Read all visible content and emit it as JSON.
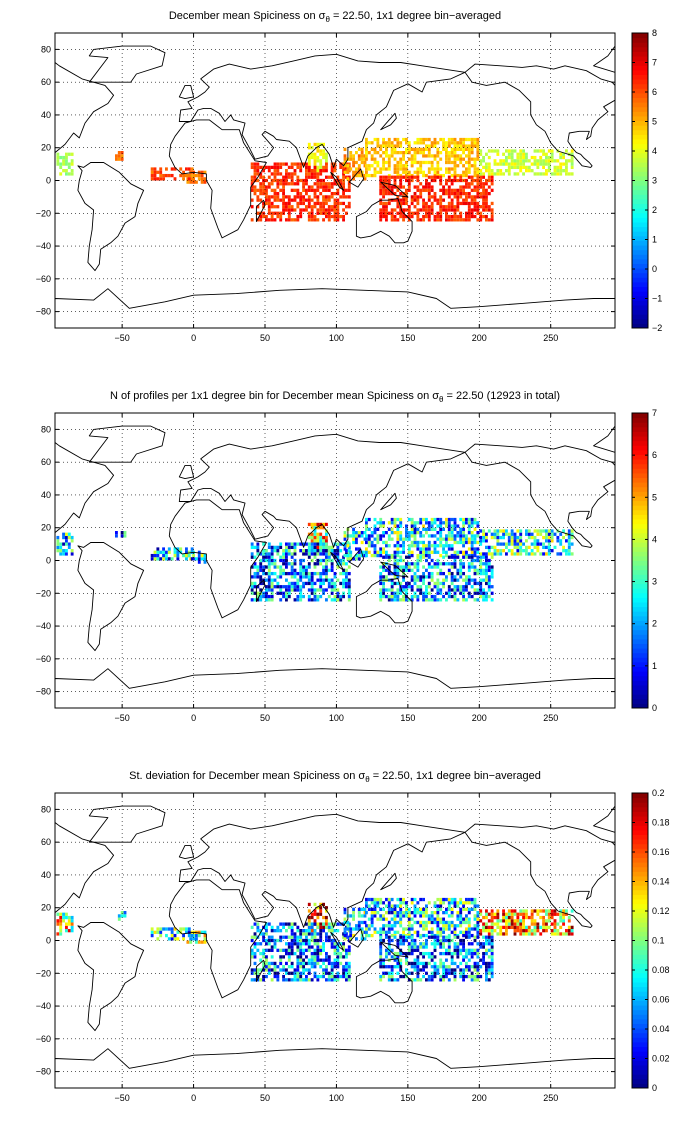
{
  "chart_data": [
    {
      "type": "heatmap",
      "title_prefix": "December mean Spiciness on σ",
      "title_sub": "θ",
      "title_suffix": " = 22.50, 1x1 degree bin−averaged",
      "x_ticks": [
        -50,
        0,
        50,
        100,
        150,
        200,
        250
      ],
      "y_ticks": [
        80,
        60,
        40,
        20,
        0,
        -20,
        -40,
        -60,
        -80
      ],
      "xlim": [
        -97,
        295
      ],
      "ylim": [
        -90,
        90
      ],
      "grid": true,
      "colormap": "jet",
      "clim": [
        -2,
        8
      ],
      "colorbar_ticks": [
        -2,
        -1,
        0,
        1,
        2,
        3,
        4,
        5,
        6,
        7,
        8
      ],
      "colorbar_labels": [
        "−2",
        "−1",
        "0",
        "1",
        "2",
        "3",
        "4",
        "5",
        "6",
        "7",
        "8"
      ],
      "regions": [
        {
          "name": "east-pacific-coast",
          "x": [
            -96,
            -85
          ],
          "y": [
            3,
            16
          ],
          "level": 3.4
        },
        {
          "name": "west-africa-coast",
          "x": [
            -5,
            9
          ],
          "y": [
            -2,
            6
          ],
          "level": 5.7
        },
        {
          "name": "caribbean-edge",
          "x": [
            -55,
            -48
          ],
          "y": [
            12,
            18
          ],
          "level": 5.8
        },
        {
          "name": "equatorial-atlantic",
          "x": [
            -30,
            0
          ],
          "y": [
            0,
            8
          ],
          "level": 6.0
        },
        {
          "name": "bay-of-bengal",
          "x": [
            80,
            93
          ],
          "y": [
            5,
            22
          ],
          "level": 4.2
        },
        {
          "name": "indian-ocean",
          "x": [
            40,
            110
          ],
          "y": [
            -25,
            10
          ],
          "level": 6.3
        },
        {
          "name": "south-china-sea",
          "x": [
            105,
            120
          ],
          "y": [
            0,
            20
          ],
          "level": 5.2
        },
        {
          "name": "west-pacific-north",
          "x": [
            120,
            200
          ],
          "y": [
            2,
            25
          ],
          "level": 4.8
        },
        {
          "name": "west-pacific-south",
          "x": [
            130,
            210
          ],
          "y": [
            -25,
            2
          ],
          "level": 6.4
        },
        {
          "name": "central-east-pacific",
          "x": [
            200,
            265
          ],
          "y": [
            3,
            18
          ],
          "level": 3.8
        }
      ]
    },
    {
      "type": "heatmap",
      "title_prefix": "N of profiles per 1x1 degree bin for December mean Spiciness on σ",
      "title_sub": "θ",
      "title_suffix": " = 22.50 (12923 in total)",
      "x_ticks": [
        -50,
        0,
        50,
        100,
        150,
        200,
        250
      ],
      "y_ticks": [
        80,
        60,
        40,
        20,
        0,
        -20,
        -40,
        -60,
        -80
      ],
      "xlim": [
        -97,
        295
      ],
      "ylim": [
        -90,
        90
      ],
      "grid": true,
      "colormap": "jet",
      "clim": [
        0,
        7
      ],
      "colorbar_ticks": [
        0,
        1,
        2,
        3,
        4,
        5,
        6,
        7
      ],
      "colorbar_labels": [
        "0",
        "1",
        "2",
        "3",
        "4",
        "5",
        "6",
        "7"
      ],
      "regions": [
        {
          "name": "east-pacific-coast",
          "x": [
            -96,
            -85
          ],
          "y": [
            3,
            16
          ],
          "level": 2.2
        },
        {
          "name": "west-africa-coast",
          "x": [
            -5,
            9
          ],
          "y": [
            -2,
            6
          ],
          "level": 2.5
        },
        {
          "name": "caribbean-edge",
          "x": [
            -55,
            -48
          ],
          "y": [
            12,
            18
          ],
          "level": 2.0
        },
        {
          "name": "equatorial-atlantic",
          "x": [
            -30,
            0
          ],
          "y": [
            0,
            8
          ],
          "level": 2.2
        },
        {
          "name": "bay-of-bengal",
          "x": [
            80,
            93
          ],
          "y": [
            5,
            22
          ],
          "level": 4.5
        },
        {
          "name": "indian-ocean",
          "x": [
            40,
            110
          ],
          "y": [
            -25,
            10
          ],
          "level": 1.8
        },
        {
          "name": "south-china-sea",
          "x": [
            105,
            120
          ],
          "y": [
            0,
            20
          ],
          "level": 2.5
        },
        {
          "name": "west-pacific-north",
          "x": [
            120,
            200
          ],
          "y": [
            2,
            25
          ],
          "level": 2.6
        },
        {
          "name": "west-pacific-south",
          "x": [
            130,
            210
          ],
          "y": [
            -25,
            2
          ],
          "level": 1.9
        },
        {
          "name": "central-east-pacific",
          "x": [
            200,
            265
          ],
          "y": [
            3,
            18
          ],
          "level": 2.6
        }
      ]
    },
    {
      "type": "heatmap",
      "title_prefix": "St. deviation for December mean Spiciness on σ",
      "title_sub": "θ",
      "title_suffix": " = 22.50, 1x1 degree bin−averaged",
      "x_ticks": [
        -50,
        0,
        50,
        100,
        150,
        200,
        250
      ],
      "y_ticks": [
        80,
        60,
        40,
        20,
        0,
        -20,
        -40,
        -60,
        -80
      ],
      "xlim": [
        -97,
        295
      ],
      "ylim": [
        -90,
        90
      ],
      "grid": true,
      "colormap": "jet",
      "clim": [
        0,
        0.2
      ],
      "colorbar_ticks": [
        0,
        0.02,
        0.04,
        0.06,
        0.08,
        0.1,
        0.12,
        0.14,
        0.16,
        0.18,
        0.2
      ],
      "colorbar_labels": [
        "0",
        "0.02",
        "0.04",
        "0.06",
        "0.08",
        "0.1",
        "0.12",
        "0.14",
        "0.16",
        "0.18",
        "0.2"
      ],
      "regions": [
        {
          "name": "east-pacific-coast",
          "x": [
            -96,
            -85
          ],
          "y": [
            3,
            16
          ],
          "level": 0.12
        },
        {
          "name": "west-africa-coast",
          "x": [
            -5,
            9
          ],
          "y": [
            -2,
            6
          ],
          "level": 0.09
        },
        {
          "name": "caribbean-edge",
          "x": [
            -55,
            -48
          ],
          "y": [
            12,
            18
          ],
          "level": 0.06
        },
        {
          "name": "equatorial-atlantic",
          "x": [
            -30,
            0
          ],
          "y": [
            0,
            8
          ],
          "level": 0.08
        },
        {
          "name": "bay-of-bengal",
          "x": [
            80,
            93
          ],
          "y": [
            5,
            22
          ],
          "level": 0.17
        },
        {
          "name": "indian-ocean",
          "x": [
            40,
            110
          ],
          "y": [
            -25,
            10
          ],
          "level": 0.05
        },
        {
          "name": "south-china-sea",
          "x": [
            105,
            120
          ],
          "y": [
            0,
            20
          ],
          "level": 0.08
        },
        {
          "name": "west-pacific-north",
          "x": [
            120,
            200
          ],
          "y": [
            2,
            25
          ],
          "level": 0.07
        },
        {
          "name": "west-pacific-south",
          "x": [
            130,
            210
          ],
          "y": [
            -25,
            2
          ],
          "level": 0.05
        },
        {
          "name": "central-east-pacific",
          "x": [
            200,
            265
          ],
          "y": [
            3,
            18
          ],
          "level": 0.14
        }
      ]
    }
  ]
}
